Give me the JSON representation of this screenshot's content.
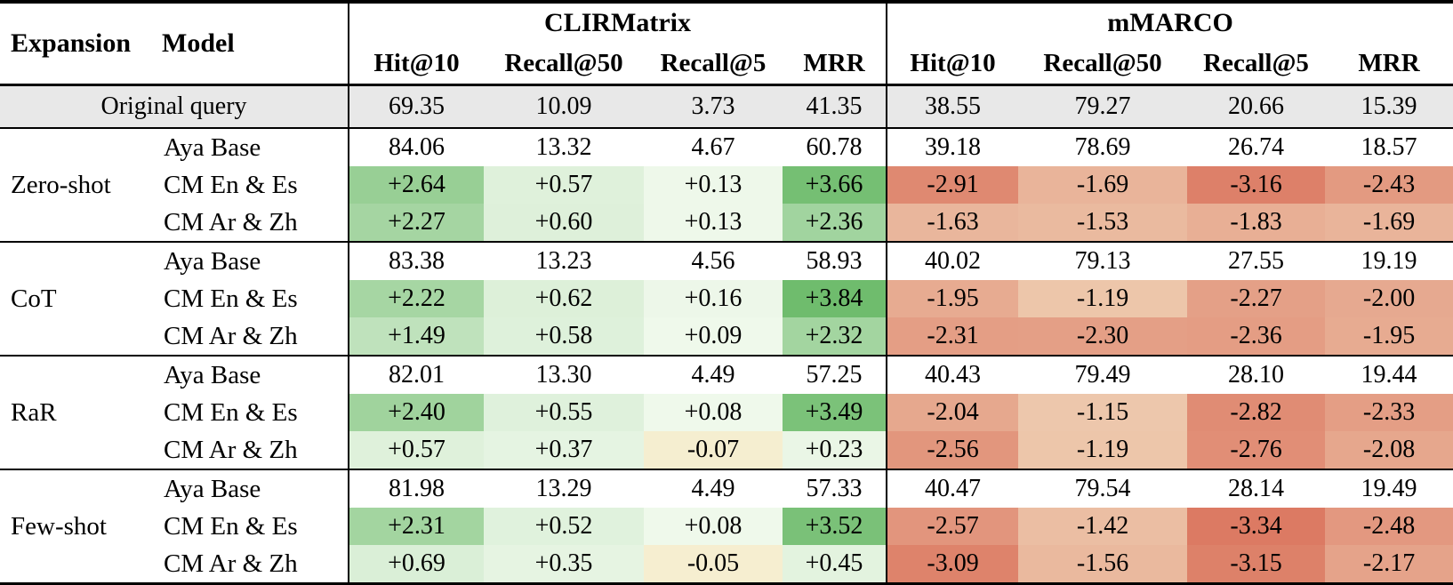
{
  "table": {
    "col_headers": {
      "expansion": "Expansion",
      "model": "Model"
    },
    "groups": [
      {
        "label": "CLIRMatrix"
      },
      {
        "label": "mMARCO"
      }
    ],
    "metrics": [
      "Hit@10",
      "Recall@50",
      "Recall@5",
      "MRR"
    ],
    "baseline_row": {
      "label": "Original query",
      "clirmatrix": [
        "69.35",
        "10.09",
        "3.73",
        "41.35"
      ],
      "mmarco": [
        "38.55",
        "79.27",
        "20.66",
        "15.39"
      ]
    },
    "sections": [
      {
        "expansion": "Zero-shot",
        "rows": [
          {
            "model": "Aya Base",
            "heat": false,
            "clirmatrix": [
              "84.06",
              "13.32",
              "4.67",
              "60.78"
            ],
            "mmarco": [
              "39.18",
              "78.69",
              "26.74",
              "18.57"
            ]
          },
          {
            "model": "CM En & Es",
            "heat": true,
            "clirmatrix": [
              "+2.64",
              "+0.57",
              "+0.13",
              "+3.66"
            ],
            "mmarco": [
              "-2.91",
              "-1.69",
              "-3.16",
              "-2.43"
            ]
          },
          {
            "model": "CM Ar & Zh",
            "heat": true,
            "clirmatrix": [
              "+2.27",
              "+0.60",
              "+0.13",
              "+2.36"
            ],
            "mmarco": [
              "-1.63",
              "-1.53",
              "-1.83",
              "-1.69"
            ]
          }
        ]
      },
      {
        "expansion": "CoT",
        "rows": [
          {
            "model": "Aya Base",
            "heat": false,
            "clirmatrix": [
              "83.38",
              "13.23",
              "4.56",
              "58.93"
            ],
            "mmarco": [
              "40.02",
              "79.13",
              "27.55",
              "19.19"
            ]
          },
          {
            "model": "CM En & Es",
            "heat": true,
            "clirmatrix": [
              "+2.22",
              "+0.62",
              "+0.16",
              "+3.84"
            ],
            "mmarco": [
              "-1.95",
              "-1.19",
              "-2.27",
              "-2.00"
            ]
          },
          {
            "model": "CM Ar & Zh",
            "heat": true,
            "clirmatrix": [
              "+1.49",
              "+0.58",
              "+0.09",
              "+2.32"
            ],
            "mmarco": [
              "-2.31",
              "-2.30",
              "-2.36",
              "-1.95"
            ]
          }
        ]
      },
      {
        "expansion": "RaR",
        "rows": [
          {
            "model": "Aya Base",
            "heat": false,
            "clirmatrix": [
              "82.01",
              "13.30",
              "4.49",
              "57.25"
            ],
            "mmarco": [
              "40.43",
              "79.49",
              "28.10",
              "19.44"
            ]
          },
          {
            "model": "CM En & Es",
            "heat": true,
            "clirmatrix": [
              "+2.40",
              "+0.55",
              "+0.08",
              "+3.49"
            ],
            "mmarco": [
              "-2.04",
              "-1.15",
              "-2.82",
              "-2.33"
            ]
          },
          {
            "model": "CM Ar & Zh",
            "heat": true,
            "clirmatrix": [
              "+0.57",
              "+0.37",
              "-0.07",
              "+0.23"
            ],
            "mmarco": [
              "-2.56",
              "-1.19",
              "-2.76",
              "-2.08"
            ]
          }
        ]
      },
      {
        "expansion": "Few-shot",
        "rows": [
          {
            "model": "Aya Base",
            "heat": false,
            "clirmatrix": [
              "81.98",
              "13.29",
              "4.49",
              "57.33"
            ],
            "mmarco": [
              "40.47",
              "79.54",
              "28.14",
              "19.49"
            ]
          },
          {
            "model": "CM En & Es",
            "heat": true,
            "clirmatrix": [
              "+2.31",
              "+0.52",
              "+0.08",
              "+3.52"
            ],
            "mmarco": [
              "-2.57",
              "-1.42",
              "-3.34",
              "-2.48"
            ]
          },
          {
            "model": "CM Ar & Zh",
            "heat": true,
            "clirmatrix": [
              "+0.69",
              "+0.35",
              "-0.05",
              "+0.45"
            ],
            "mmarco": [
              "-3.09",
              "-1.56",
              "-3.15",
              "-2.17"
            ]
          }
        ]
      }
    ],
    "heatmap": {
      "positive_zero": "#f2faee",
      "positive_max": "#6fbc6d",
      "positive_vmax": 3.84,
      "negative_zero": "#f6f0d2",
      "negative_max": "#dc7a63",
      "negative_vmax": 3.34,
      "baseline_row_bg": "#e8e8e8"
    }
  }
}
